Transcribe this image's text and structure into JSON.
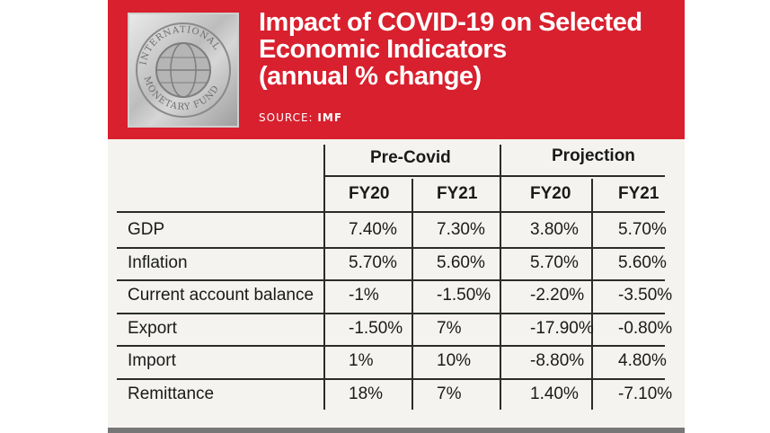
{
  "header": {
    "title_lines": [
      "Impact of COVID-19 on Selected",
      "Economic Indicators",
      "(annual % change)"
    ],
    "source_label": "SOURCE:",
    "source_value": "IMF",
    "logo_text_top": "INTERNATIONAL",
    "logo_text_bottom": "MONETARY FUND"
  },
  "table": {
    "groups": [
      "Pre-Covid",
      "Projection"
    ],
    "columns": [
      "FY20",
      "FY21",
      "FY20",
      "FY21"
    ],
    "rows": [
      {
        "label": "GDP",
        "values": [
          "7.40%",
          "7.30%",
          "3.80%",
          "5.70%"
        ]
      },
      {
        "label": "Inflation",
        "values": [
          "5.70%",
          "5.60%",
          "5.70%",
          "5.60%"
        ]
      },
      {
        "label": "Current account balance",
        "values": [
          "-1%",
          "-1.50%",
          "-2.20%",
          "-3.50%"
        ]
      },
      {
        "label": "Export",
        "values": [
          "-1.50%",
          "7%",
          "-17.90%",
          "-0.80%"
        ]
      },
      {
        "label": "Import",
        "values": [
          "1%",
          "10%",
          "-8.80%",
          "4.80%"
        ]
      },
      {
        "label": "Remittance",
        "values": [
          "18%",
          "7%",
          "1.40%",
          "-7.10%"
        ]
      }
    ]
  },
  "colors": {
    "accent": "#d8202e",
    "card": "#f4f3ef"
  }
}
